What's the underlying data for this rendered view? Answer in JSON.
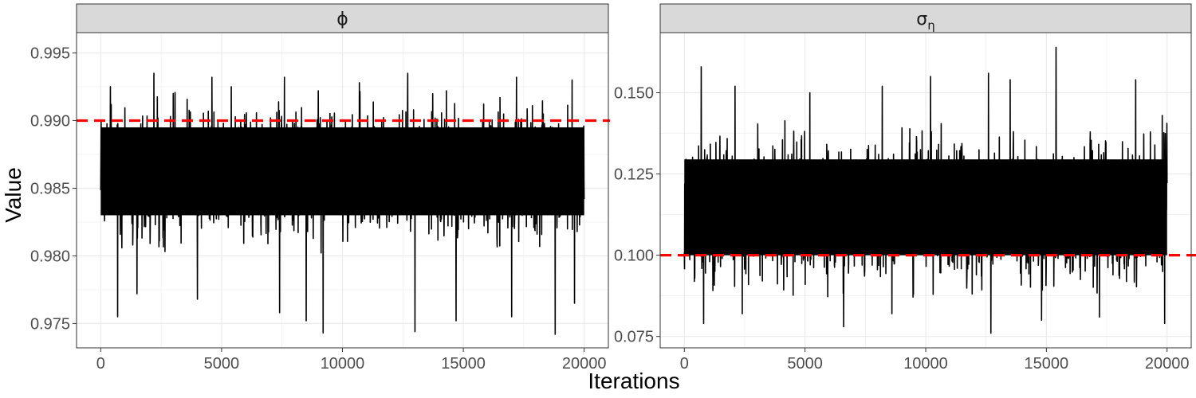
{
  "figure": {
    "ylabel": "Value",
    "xlabel": "Iterations",
    "colors": {
      "trace": "#000000",
      "reference": "#ff0000",
      "strip": "#d9d9d9",
      "grid": "#ebebeb",
      "panel_border": "#333333"
    }
  },
  "chart_data": [
    {
      "type": "line",
      "title": "ϕ",
      "xlabel": "Iterations",
      "ylabel": "Value",
      "xlim": [
        -1000,
        21000
      ],
      "ylim": [
        0.9732,
        0.9965
      ],
      "xticks": [
        0,
        5000,
        10000,
        15000,
        20000
      ],
      "xtick_labels": [
        "0",
        "5000",
        "10000",
        "15000",
        "20000"
      ],
      "yticks": [
        0.975,
        0.98,
        0.985,
        0.99,
        0.995
      ],
      "ytick_labels": [
        "0.975",
        "0.980",
        "0.985",
        "0.990",
        "0.995"
      ],
      "grid": true,
      "legend": "none",
      "series": [
        {
          "iterations": 20000,
          "center": 0.9862,
          "typical_band": [
            0.983,
            0.9895
          ],
          "extremes": [
            [
              700,
              0.9755
            ],
            [
              1500,
              0.9772
            ],
            [
              4000,
              0.9768
            ],
            [
              7400,
              0.9758
            ],
            [
              8500,
              0.9752
            ],
            [
              9200,
              0.9743
            ],
            [
              13000,
              0.9744
            ],
            [
              14700,
              0.9752
            ],
            [
              17000,
              0.9755
            ],
            [
              18800,
              0.9742
            ],
            [
              19600,
              0.9765
            ],
            [
              400,
              0.9925
            ],
            [
              2200,
              0.9935
            ],
            [
              3000,
              0.992
            ],
            [
              4600,
              0.9932
            ],
            [
              5400,
              0.9925
            ],
            [
              7600,
              0.9932
            ],
            [
              9000,
              0.9922
            ],
            [
              10700,
              0.9928
            ],
            [
              12700,
              0.9935
            ],
            [
              14300,
              0.9922
            ],
            [
              17200,
              0.9932
            ],
            [
              19500,
              0.993
            ]
          ]
        }
      ],
      "reference_line": {
        "y": 0.99,
        "style": "dashed"
      }
    },
    {
      "type": "line",
      "title": "σ",
      "title_subscript": "η",
      "xlabel": "Iterations",
      "ylabel": "Value",
      "xlim": [
        -1000,
        21000
      ],
      "ylim": [
        0.0715,
        0.1685
      ],
      "xticks": [
        0,
        5000,
        10000,
        15000,
        20000
      ],
      "xtick_labels": [
        "0",
        "5000",
        "10000",
        "15000",
        "20000"
      ],
      "yticks": [
        0.075,
        0.1,
        0.125,
        0.15
      ],
      "ytick_labels": [
        "0.075",
        "0.100",
        "0.125",
        "0.150"
      ],
      "grid": true,
      "legend": "none",
      "series": [
        {
          "iterations": 20000,
          "center": 0.1135,
          "typical_band": [
            0.1,
            0.1295
          ],
          "extremes": [
            [
              700,
              0.158
            ],
            [
              2100,
              0.152
            ],
            [
              5200,
              0.15
            ],
            [
              8200,
              0.152
            ],
            [
              10200,
              0.155
            ],
            [
              12600,
              0.156
            ],
            [
              13500,
              0.154
            ],
            [
              15400,
              0.164
            ],
            [
              18700,
              0.154
            ],
            [
              19800,
              0.143
            ],
            [
              800,
              0.079
            ],
            [
              2400,
              0.082
            ],
            [
              6600,
              0.078
            ],
            [
              8600,
              0.082
            ],
            [
              12700,
              0.076
            ],
            [
              14800,
              0.08
            ],
            [
              17200,
              0.081
            ],
            [
              19900,
              0.079
            ]
          ]
        }
      ],
      "reference_line": {
        "y": 0.1,
        "style": "dashed"
      }
    }
  ]
}
